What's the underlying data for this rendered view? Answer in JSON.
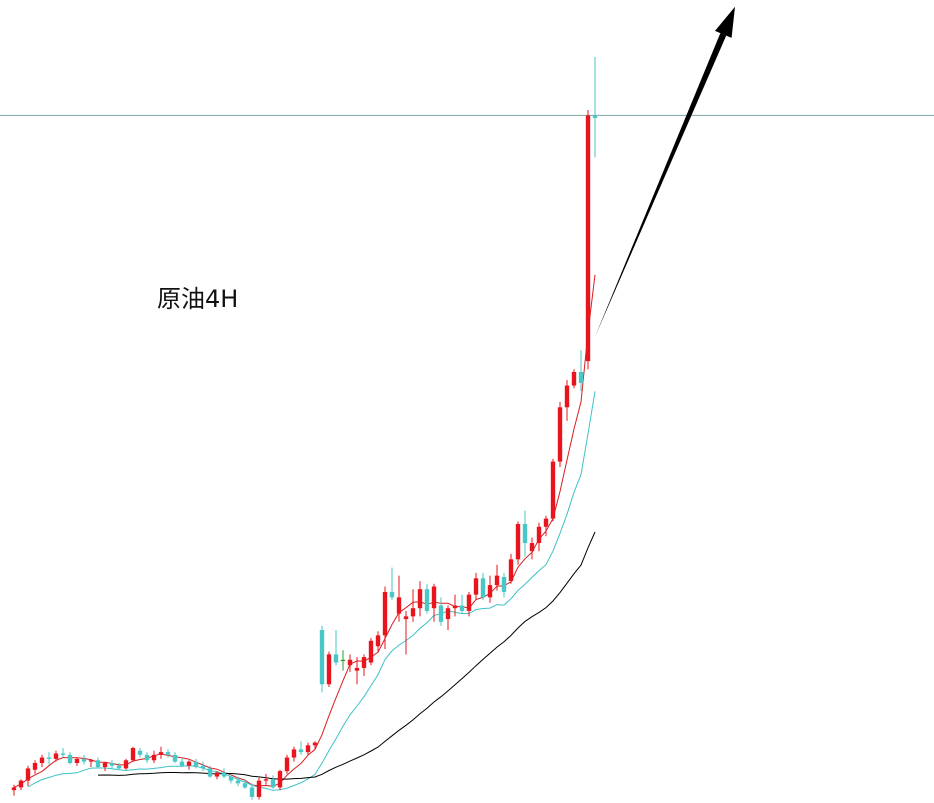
{
  "chart_data": {
    "type": "candlestick",
    "label": "原油4H",
    "up_color": "#e8141e",
    "down_color": "#49c6c6",
    "doji_color": "#2a9a2a",
    "ma_colors": [
      "#d61f1f",
      "#3fc1c8",
      "#000000"
    ],
    "level_line_color": "#7fa6a6",
    "arrow_color": "#000000",
    "level": 95.5,
    "ylim": [
      45,
      104
    ],
    "candles": [
      [
        45.8,
        46.2,
        45.4,
        46.0
      ],
      [
        46.0,
        46.6,
        45.8,
        46.5
      ],
      [
        46.5,
        47.6,
        46.1,
        47.4
      ],
      [
        47.3,
        48.0,
        47.0,
        47.8
      ],
      [
        47.8,
        48.4,
        47.5,
        48.2
      ],
      [
        48.2,
        48.6,
        47.7,
        48.1
      ],
      [
        48.1,
        48.7,
        47.9,
        48.5
      ],
      [
        48.5,
        48.9,
        48.2,
        48.4
      ],
      [
        48.4,
        48.6,
        47.7,
        47.8
      ],
      [
        47.8,
        48.2,
        47.6,
        48.1
      ],
      [
        48.1,
        48.4,
        47.7,
        47.9
      ],
      [
        47.9,
        48.1,
        47.5,
        48.0
      ],
      [
        48.0,
        48.2,
        47.4,
        47.5
      ],
      [
        47.5,
        47.9,
        47.2,
        47.8
      ],
      [
        47.8,
        48.0,
        47.4,
        47.6
      ],
      [
        47.6,
        47.8,
        47.3,
        47.4
      ],
      [
        47.4,
        48.1,
        47.3,
        48.0
      ],
      [
        48.0,
        49.0,
        47.9,
        48.9
      ],
      [
        48.7,
        48.9,
        48.2,
        48.4
      ],
      [
        48.4,
        48.6,
        47.8,
        48.0
      ],
      [
        48.0,
        48.7,
        47.8,
        48.4
      ],
      [
        48.4,
        49.0,
        48.1,
        48.6
      ],
      [
        48.6,
        48.8,
        48.2,
        48.4
      ],
      [
        48.4,
        48.6,
        47.8,
        47.9
      ],
      [
        47.9,
        48.2,
        47.5,
        47.6
      ],
      [
        47.6,
        48.0,
        47.3,
        47.9
      ],
      [
        47.9,
        48.1,
        47.4,
        47.5
      ],
      [
        47.6,
        47.9,
        47.2,
        47.4
      ],
      [
        47.4,
        47.6,
        46.7,
        46.8
      ],
      [
        46.8,
        47.2,
        46.6,
        47.1
      ],
      [
        47.1,
        47.4,
        46.7,
        46.8
      ],
      [
        46.8,
        47.0,
        46.3,
        46.5
      ],
      [
        46.5,
        46.8,
        46.1,
        46.3
      ],
      [
        46.3,
        46.6,
        45.9,
        46.0
      ],
      [
        46.0,
        46.3,
        45.1,
        45.3
      ],
      [
        45.3,
        46.7,
        45.1,
        46.5
      ],
      [
        46.5,
        47.0,
        46.2,
        46.6
      ],
      [
        46.6,
        46.9,
        45.9,
        46.0
      ],
      [
        46.0,
        47.3,
        45.8,
        47.2
      ],
      [
        47.2,
        48.4,
        47.0,
        48.2
      ],
      [
        48.2,
        49.0,
        47.9,
        48.8
      ],
      [
        48.8,
        49.4,
        48.4,
        48.6
      ],
      [
        48.6,
        49.3,
        48.4,
        49.1
      ],
      [
        49.1,
        49.4,
        48.8,
        49.3
      ],
      [
        57.6,
        57.9,
        53.0,
        53.6
      ],
      [
        53.6,
        56.0,
        53.4,
        55.8
      ],
      [
        55.8,
        57.6,
        55.0,
        55.2
      ],
      [
        55.4,
        56.1,
        54.6,
        55.4
      ],
      [
        55.0,
        55.8,
        54.5,
        55.4
      ],
      [
        54.6,
        55.6,
        53.6,
        54.8
      ],
      [
        54.8,
        55.8,
        54.2,
        55.6
      ],
      [
        55.2,
        57.0,
        55.0,
        56.8
      ],
      [
        56.4,
        57.5,
        56.0,
        57.2
      ],
      [
        57.2,
        60.8,
        56.2,
        60.4
      ],
      [
        60.4,
        62.2,
        59.8,
        60.0
      ],
      [
        58.8,
        61.6,
        58.2,
        60.0
      ],
      [
        58.4,
        59.0,
        55.8,
        58.6
      ],
      [
        58.6,
        60.6,
        58.2,
        59.2
      ],
      [
        59.2,
        61.2,
        58.6,
        60.6
      ],
      [
        60.6,
        61.0,
        58.8,
        59.0
      ],
      [
        59.2,
        61.0,
        58.2,
        60.8
      ],
      [
        59.4,
        60.0,
        57.9,
        58.2
      ],
      [
        58.4,
        59.4,
        57.6,
        59.2
      ],
      [
        59.2,
        60.2,
        58.6,
        59.4
      ],
      [
        59.4,
        60.2,
        58.8,
        59.0
      ],
      [
        59.0,
        60.4,
        58.6,
        60.2
      ],
      [
        60.2,
        61.8,
        59.8,
        61.4
      ],
      [
        61.4,
        61.8,
        59.8,
        60.0
      ],
      [
        60.0,
        61.6,
        59.6,
        60.9
      ],
      [
        60.9,
        62.4,
        60.5,
        61.6
      ],
      [
        61.5,
        61.8,
        60.0,
        60.4
      ],
      [
        61.2,
        63.2,
        61.0,
        62.8
      ],
      [
        62.8,
        65.6,
        62.4,
        65.4
      ],
      [
        65.4,
        66.4,
        63.0,
        64.0
      ],
      [
        63.4,
        64.4,
        62.8,
        64.0
      ],
      [
        64.0,
        65.5,
        63.4,
        65.2
      ],
      [
        65.2,
        66.0,
        64.5,
        65.8
      ],
      [
        65.8,
        70.2,
        65.6,
        70.0
      ],
      [
        70.0,
        74.4,
        69.6,
        74.0
      ],
      [
        74.0,
        76.0,
        73.0,
        75.6
      ],
      [
        75.6,
        76.8,
        75.4,
        76.6
      ],
      [
        76.6,
        78.2,
        75.2,
        75.8
      ],
      [
        77.4,
        95.9,
        76.8,
        95.5
      ],
      [
        95.5,
        99.8,
        92.4,
        95.3
      ]
    ],
    "annotations": {
      "trend_arrow": {
        "from_index": 83,
        "from_price": 79.2,
        "to_index": 103,
        "to_price": 103.5
      }
    }
  }
}
